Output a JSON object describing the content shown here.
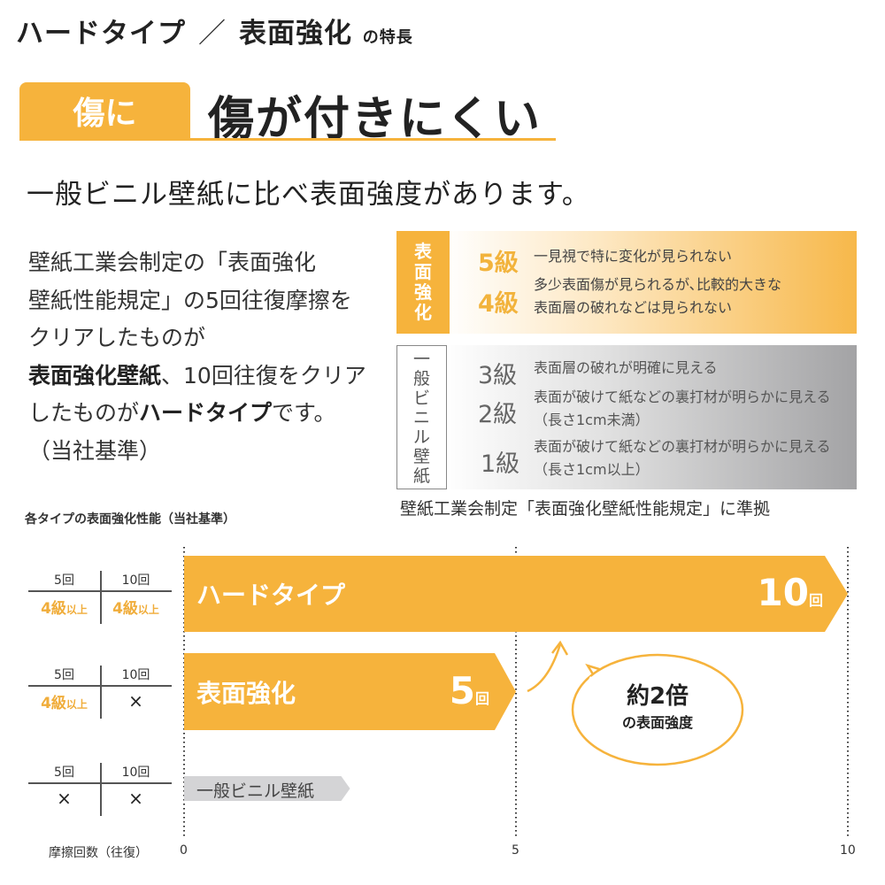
{
  "title": {
    "part1": "ハードタイプ",
    "sep": "／",
    "part2": "表面強化",
    "suffix": "の特長"
  },
  "heading": {
    "tab": "傷に",
    "text": "傷が付きにくい"
  },
  "subtitle": "一般ビニル壁紙に比べ表面強度があります。",
  "paragraph": [
    "壁紙工業会制定の「表面強化",
    "壁紙性能規定」の5回往復摩擦を",
    "クリアしたものが",
    "表面強化壁紙",
    "、10回往復をクリア",
    "したものが",
    "ハードタイプ",
    "です。",
    "（当社基準）"
  ],
  "grades": {
    "strong": {
      "label": [
        "表",
        "面",
        "強",
        "化"
      ],
      "items": [
        {
          "grade": "5級",
          "desc": [
            "一見視で特に変化が見られない"
          ]
        },
        {
          "grade": "4級",
          "desc": [
            "多少表面傷が見られるが､比較的大きな",
            "表面層の破れなどは見られない"
          ]
        }
      ]
    },
    "vinyl": {
      "label": [
        "一",
        "般",
        "ビ",
        "ニ",
        "ル",
        "壁",
        "紙"
      ],
      "items": [
        {
          "grade": "3級",
          "desc": [
            "表面層の破れが明確に見える"
          ]
        },
        {
          "grade": "2級",
          "desc": [
            "表面が破けて紙などの裏打材が明らかに見える",
            "（長さ1cm未満）"
          ]
        },
        {
          "grade": "1級",
          "desc": [
            "表面が破けて紙などの裏打材が明らかに見える",
            "（長さ1cm以上）"
          ]
        }
      ]
    },
    "caption": "壁紙工業会制定「表面強化壁紙性能規定」に準拠"
  },
  "chart_data": {
    "type": "bar",
    "orientation": "horizontal",
    "title": "各タイプの表面強化性能（当社基準）",
    "xlabel": "摩擦回数（往復）",
    "xlim": [
      0,
      10
    ],
    "xticks": [
      "0",
      "5",
      "10"
    ],
    "grid": "dotted vertical at 0,5,10",
    "categories": [
      "ハードタイプ",
      "表面強化",
      "一般ビニル壁紙"
    ],
    "values": [
      10,
      5,
      2.5
    ],
    "value_labels": [
      {
        "num": "10",
        "unit": "回"
      },
      {
        "num": "5",
        "unit": "回"
      },
      null
    ],
    "colors": [
      "#f6b33c",
      "#f6b33c",
      "#d4d4d6"
    ],
    "callout": {
      "main": "約2倍",
      "sub": "の表面強度"
    },
    "tables": [
      {
        "h": [
          "5回",
          "10回"
        ],
        "v": [
          {
            "g": "4級",
            "s": "以上"
          },
          {
            "g": "4級",
            "s": "以上"
          }
        ]
      },
      {
        "h": [
          "5回",
          "10回"
        ],
        "v": [
          {
            "g": "4級",
            "s": "以上"
          },
          {
            "x": "×"
          }
        ]
      },
      {
        "h": [
          "5回",
          "10回"
        ],
        "v": [
          {
            "x": "×"
          },
          {
            "x": "×"
          }
        ]
      }
    ]
  }
}
